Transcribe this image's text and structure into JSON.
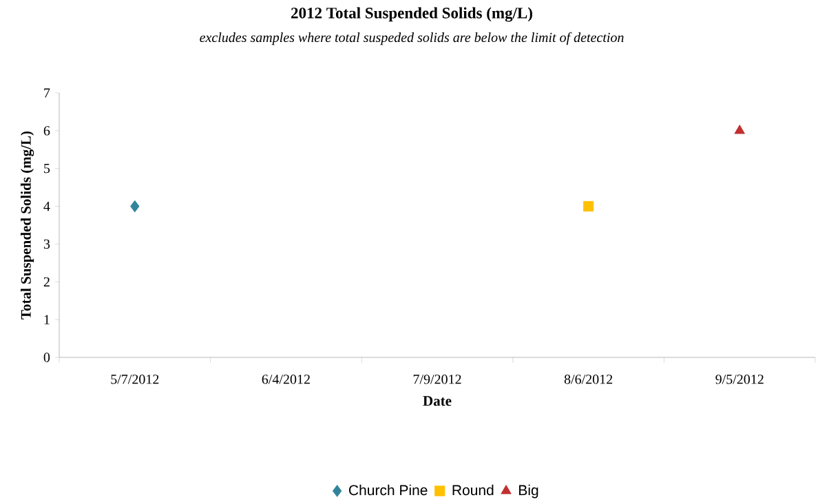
{
  "chart_data": {
    "type": "scatter",
    "title": "2012 Total Suspended Solids (mg/L)",
    "subtitle": "excludes samples where total suspeded solids are below the limit of detection",
    "xlabel": "Date",
    "ylabel": "Total Suspended Solids (mg/L)",
    "categories": [
      "5/7/2012",
      "6/4/2012",
      "7/9/2012",
      "8/6/2012",
      "9/5/2012"
    ],
    "series": [
      {
        "name": "Church Pine",
        "color": "#31849b",
        "marker": "diamond",
        "values": [
          4,
          null,
          null,
          null,
          null
        ]
      },
      {
        "name": "Round",
        "color": "#ffc000",
        "marker": "square",
        "values": [
          null,
          null,
          null,
          4,
          null
        ]
      },
      {
        "name": "Big",
        "color": "#c0302f",
        "marker": "triangle",
        "values": [
          null,
          null,
          null,
          null,
          6
        ]
      }
    ],
    "ylim": [
      0,
      7
    ],
    "yticks": [
      0,
      1,
      2,
      3,
      4,
      5,
      6,
      7
    ],
    "legend": "bottom"
  }
}
